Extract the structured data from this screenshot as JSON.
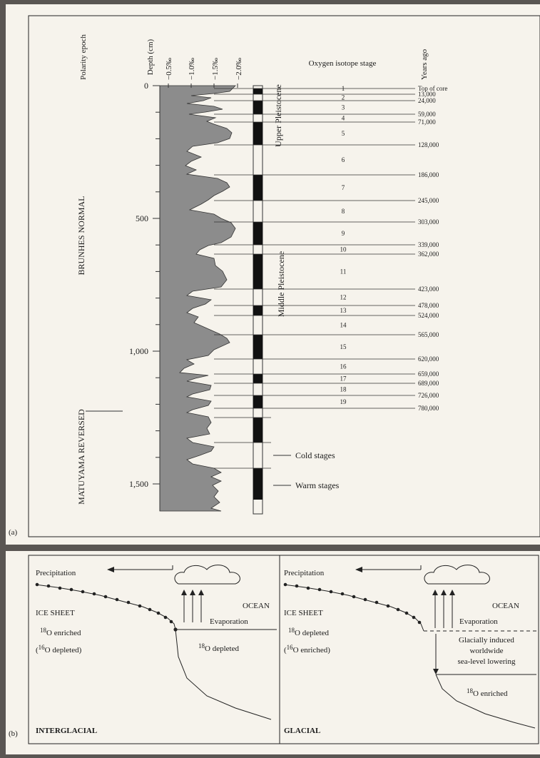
{
  "panel_a": {
    "label": "(a)",
    "col_polarity": "Polarity epoch",
    "col_depth": "Depth (cm)",
    "col_isotope_ticks": [
      "−0.5‰",
      "−1.0‰",
      "−1.5‰",
      "−2.0‰"
    ],
    "col_stage": "Oxygen isotope stage",
    "col_years": "Years ago",
    "depth_ticks": [
      {
        "label": "0",
        "depth": 0
      },
      {
        "label": "500",
        "depth": 500
      },
      {
        "label": "1,000",
        "depth": 1000
      },
      {
        "label": "1,500",
        "depth": 1500
      }
    ],
    "polarity": [
      {
        "name": "BRUNHES NORMAL"
      },
      {
        "name": "MATUYAMA REVERSED"
      }
    ],
    "epochs": [
      {
        "name": "Upper Pleistocene"
      },
      {
        "name": "Middle Pleistocene"
      }
    ],
    "stages": [
      {
        "n": "1",
        "years": "Top of core"
      },
      {
        "n": "2",
        "years": "13,000"
      },
      {
        "n": "3",
        "years": "24,000"
      },
      {
        "n": "4",
        "years": "59,000"
      },
      {
        "n": "5",
        "years": "71,000"
      },
      {
        "n": "6",
        "years": "128,000"
      },
      {
        "n": "7",
        "years": "186,000"
      },
      {
        "n": "8",
        "years": "245,000"
      },
      {
        "n": "9",
        "years": "303,000"
      },
      {
        "n": "10",
        "years": "339,000"
      },
      {
        "n": "11",
        "years": "362,000"
      },
      {
        "n": "12",
        "years": "423,000"
      },
      {
        "n": "13",
        "years": "478,000"
      },
      {
        "n": "14",
        "years": "524,000"
      },
      {
        "n": "15",
        "years": "565,000"
      },
      {
        "n": "16",
        "years": "620,000"
      },
      {
        "n": "17",
        "years": "659,000"
      },
      {
        "n": "18",
        "years": "689,000"
      },
      {
        "n": "19",
        "years": "726,000"
      }
    ],
    "last_year": "780,000",
    "legend_cold": "Cold stages",
    "legend_warm": "Warm stages"
  },
  "panel_b": {
    "label": "(b)",
    "left": {
      "precip": "Precipitation",
      "ocean": "OCEAN",
      "evap": "Evaporation",
      "ice": "ICE SHEET",
      "ice_iso1": "O enriched",
      "ice_iso2": "O depleted)",
      "ocean_iso": "O depleted",
      "title": "INTERGLACIAL"
    },
    "right": {
      "precip": "Precipitation",
      "ocean": "OCEAN",
      "evap": "Evaporation",
      "ice": "ICE SHEET",
      "ice_iso1": "O depleted",
      "ice_iso2": "O enriched)",
      "sea1": "Glacially induced",
      "sea2": "worldwide",
      "sea3": "sea-level lowering",
      "ocean_iso": "O enriched",
      "title": "GLACIAL"
    },
    "sup18": "18",
    "sup16": "16"
  }
}
